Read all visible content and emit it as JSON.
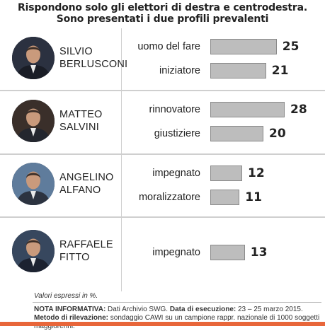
{
  "header": {
    "line1": "Rispondono solo gli elettori di destra e centrodestra.",
    "line2": "Sono  presentati i due profili prevalenti"
  },
  "chart_data": {
    "type": "bar",
    "orientation": "horizontal",
    "groups": [
      {
        "name_line1": "SILVIO",
        "name_line2": "BERLUSCONI",
        "items": [
          {
            "label": "uomo del fare",
            "value": 25
          },
          {
            "label": "iniziatore",
            "value": 21
          }
        ]
      },
      {
        "name_line1": "MATTEO",
        "name_line2": "SALVINI",
        "items": [
          {
            "label": "rinnovatore",
            "value": 28
          },
          {
            "label": "giustiziere",
            "value": 20
          }
        ]
      },
      {
        "name_line1": "ANGELINO",
        "name_line2": "ALFANO",
        "items": [
          {
            "label": "impegnato",
            "value": 12
          },
          {
            "label": "moralizzatore",
            "value": 11
          }
        ]
      },
      {
        "name_line1": "RAFFAELE",
        "name_line2": "FITTO",
        "items": [
          {
            "label": "impegnato",
            "value": 13
          }
        ]
      }
    ],
    "bar_color": "#bdbdbd"
  },
  "footer": {
    "unit_note": "Valori espressi in %.",
    "nota_label": "NOTA INFORMATIVA:",
    "nota_source": " Dati Archivio SWG. ",
    "exec_label": "Data di esecuzione:",
    "exec_value": " 23 – 25 marzo 2015. ",
    "method_label": "Metodo di rilevazione:",
    "method_value": " sondaggio CAWI su un campione rappr. nazionale di 1000 soggetti maggiorenni."
  },
  "colors": {
    "accent_strip": "#e8663a"
  }
}
